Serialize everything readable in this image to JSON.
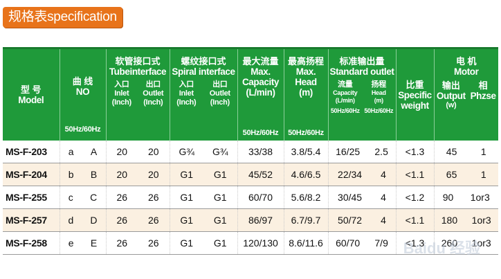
{
  "title": "规格表specification",
  "header": {
    "model": {
      "zh": "型 号",
      "en": "Model"
    },
    "curve": {
      "zh": "曲 线",
      "en": "NO",
      "sub": "50Hz/60Hz"
    },
    "tube": {
      "zh": "软管接口式",
      "en": "Tubeinterface",
      "inlet_zh": "入口",
      "inlet_en": "Inlet",
      "inlet_unit": "(Inch)",
      "outlet_zh": "出口",
      "outlet_en": "Outlet",
      "outlet_unit": "(Inch)"
    },
    "spiral": {
      "zh": "螺纹接口式",
      "en": "Spiral interface",
      "inlet_zh": "入口",
      "inlet_en": "Inlet",
      "inlet_unit": "(Inch)",
      "outlet_zh": "出口",
      "outlet_en": "Outlet",
      "outlet_unit": "(Inch)"
    },
    "flow": {
      "zh": "最大流量",
      "en1": "Max.",
      "en2": "Capacity",
      "unit": "(L/min)",
      "sub": "50Hz/60Hz"
    },
    "head": {
      "zh": "最高扬程",
      "en1": "Max.",
      "en2": "Head",
      "unit": "(m)",
      "sub": "50Hz/60Hz"
    },
    "std": {
      "zh": "标准输出量",
      "en": "Standard outlet",
      "cap_zh": "流量",
      "cap_en": "Capacity",
      "cap_unit": "(L/min)",
      "cap_sub": "50Hz/60Hz",
      "head_zh": "扬程",
      "head_en": "Head",
      "head_unit": "(m)",
      "head_sub": "50Hz/60Hz"
    },
    "weight": {
      "zh": "比重",
      "en1": "Specific",
      "en2": "weight"
    },
    "motor": {
      "zh": "电 机",
      "en": "Motor",
      "out_zh": "输出",
      "out_en": "Output",
      "out_unit": "(w)",
      "ph_zh": "相",
      "ph_en": "Phzse"
    }
  },
  "rows": [
    {
      "model": "MS-F-203",
      "c50": "a",
      "c60": "A",
      "tin": "20",
      "tout": "20",
      "sin": "G¾",
      "sout": "G¾",
      "flow": "33/38",
      "head": "3.8/5.4",
      "cap": "16/25",
      "shead": "2.5",
      "sw": "<1.3",
      "out": "45",
      "ph": "1"
    },
    {
      "model": "MS-F-204",
      "c50": "b",
      "c60": "B",
      "tin": "20",
      "tout": "20",
      "sin": "G1",
      "sout": "G1",
      "flow": "45/52",
      "head": "4.6/6.5",
      "cap": "22/34",
      "shead": "4",
      "sw": "<1.1",
      "out": "65",
      "ph": "1"
    },
    {
      "model": "MS-F-255",
      "c50": "c",
      "c60": "C",
      "tin": "26",
      "tout": "26",
      "sin": "G1",
      "sout": "G1",
      "flow": "60/70",
      "head": "5.6/8.2",
      "cap": "30/45",
      "shead": "4",
      "sw": "<1.2",
      "out": "90",
      "ph": "1or3"
    },
    {
      "model": "MS-F-257",
      "c50": "d",
      "c60": "D",
      "tin": "26",
      "tout": "26",
      "sin": "G1",
      "sout": "G1",
      "flow": "86/97",
      "head": "6.7/9.7",
      "cap": "50/72",
      "shead": "4",
      "sw": "<1.1",
      "out": "180",
      "ph": "1or3"
    },
    {
      "model": "MS-F-258",
      "c50": "e",
      "c60": "E",
      "tin": "26",
      "tout": "26",
      "sin": "G1",
      "sout": "G1",
      "flow": "120/130",
      "head": "8.6/11.6",
      "cap": "60/70",
      "shead": "7/9",
      "sw": "<1.3",
      "out": "260",
      "ph": "1or3"
    }
  ],
  "watermark": "Baidu 经验",
  "colors": {
    "header_green": "#1f9a3a",
    "badge_orange": "#e8731a",
    "row_alt": "#fbf0e1"
  }
}
